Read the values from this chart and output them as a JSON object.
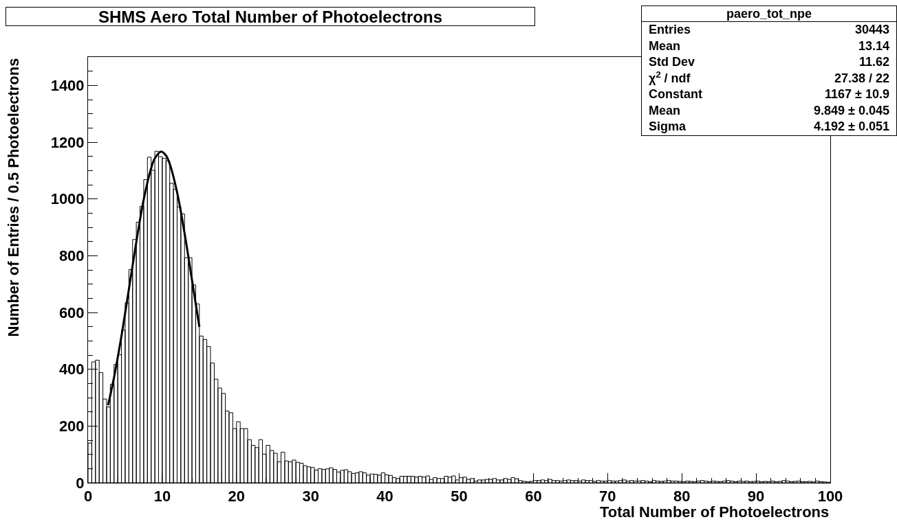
{
  "chart_data": {
    "type": "histogram",
    "title": "SHMS Aero Total Number of Photoelectrons",
    "xlabel": "Total Number of Photoelectrons",
    "ylabel": "Number of Entries / 0.5 Photoelectrons",
    "bins": [
      0,
      0.5,
      1,
      1.5,
      2,
      2.5,
      3,
      3.5,
      4,
      4.5,
      5,
      5.5,
      6,
      6.5,
      7,
      7.5,
      8,
      8.5,
      9,
      9.5,
      10,
      10.5,
      11,
      11.5,
      12,
      12.5,
      13,
      13.5,
      14,
      14.5,
      15,
      15.5,
      16,
      16.5,
      17,
      17.5,
      18,
      18.5,
      19,
      19.5,
      20,
      20.5,
      21,
      21.5,
      22,
      22.5,
      23,
      23.5,
      24,
      24.5,
      25,
      25.5,
      26,
      26.5,
      27,
      27.5,
      28,
      28.5,
      29,
      29.5,
      30,
      30.5,
      31,
      31.5,
      32,
      32.5,
      33,
      33.5,
      34,
      34.5,
      35,
      35.5,
      36,
      36.5,
      37,
      37.5,
      38,
      38.5,
      39,
      39.5,
      40,
      40.5,
      41,
      41.5,
      42,
      42.5,
      43,
      43.5,
      44,
      44.5,
      45,
      45.5,
      46,
      46.5,
      47,
      47.5,
      48,
      48.5,
      49,
      49.5,
      50,
      50.5,
      51,
      51.5,
      52,
      52.5,
      53,
      53.5,
      54,
      54.5,
      55,
      55.5,
      56,
      56.5,
      57,
      57.5,
      58,
      58.5,
      59,
      59.5,
      60,
      60.5,
      61,
      61.5,
      62,
      62.5,
      63,
      63.5,
      64,
      64.5,
      65,
      65.5,
      66,
      66.5,
      67,
      67.5,
      68,
      68.5,
      69,
      69.5,
      70,
      70.5,
      71,
      71.5,
      72,
      72.5,
      73,
      73.5,
      74,
      74.5,
      75,
      75.5,
      76,
      76.5,
      77,
      77.5,
      78,
      78.5,
      79,
      79.5,
      80,
      80.5,
      81,
      81.5,
      82,
      82.5,
      83,
      83.5,
      84,
      84.5,
      85,
      85.5,
      86,
      86.5,
      87,
      87.5,
      88,
      88.5,
      89,
      89.5,
      90,
      90.5,
      91,
      91.5,
      92,
      92.5,
      93,
      93.5,
      94,
      94.5,
      95,
      95.5,
      96,
      96.5,
      97,
      97.5,
      98,
      98.5,
      99,
      99.5,
      100
    ],
    "values": [
      140,
      426,
      432,
      388,
      295,
      267,
      347,
      417,
      451,
      538,
      634,
      751,
      857,
      918,
      974,
      1068,
      1147,
      1101,
      1168,
      1149,
      1143,
      1134,
      1055,
      1034,
      972,
      947,
      793,
      793,
      697,
      630,
      517,
      505,
      480,
      422,
      365,
      334,
      315,
      253,
      247,
      191,
      215,
      191,
      191,
      152,
      132,
      124,
      152,
      101,
      132,
      114,
      104,
      74,
      108,
      77,
      74,
      80,
      72,
      69,
      60,
      56,
      54,
      45,
      50,
      47,
      49,
      53,
      47,
      38,
      44,
      46,
      39,
      33,
      35,
      39,
      35,
      27,
      31,
      30,
      27,
      35,
      28,
      26,
      18,
      15,
      23,
      23,
      23,
      23,
      20,
      23,
      20,
      24,
      12,
      18,
      15,
      15,
      23,
      20,
      24,
      10,
      18,
      20,
      12,
      15,
      6,
      10,
      10,
      12,
      12,
      15,
      10,
      10,
      15,
      12,
      18,
      14,
      8,
      5,
      4,
      5,
      8,
      8,
      10,
      8,
      12,
      8,
      8,
      6,
      8,
      10,
      8,
      8,
      6,
      10,
      8,
      8,
      5,
      8,
      6,
      6,
      8,
      6,
      6,
      8,
      10,
      6,
      8,
      6,
      6,
      8,
      6,
      4,
      8,
      6,
      5,
      6,
      8,
      6,
      6,
      5,
      4,
      6,
      5,
      4,
      6,
      8,
      6,
      4,
      6,
      5,
      4,
      6,
      8,
      6,
      4,
      6,
      5,
      6,
      4,
      5,
      6,
      4,
      5,
      4,
      6,
      4,
      5,
      8,
      6,
      4,
      5,
      6,
      4,
      4,
      5,
      3,
      6,
      4,
      3,
      2
    ],
    "color": "#000000",
    "series": [
      {
        "type": "line",
        "color": "#000000",
        "x": [
          2.7,
          3.5,
          4.5,
          5.5,
          6.5,
          7.5,
          8.5,
          9,
          9.849,
          10.5,
          11,
          12,
          13,
          14,
          15
        ],
        "values": [
          273,
          371,
          517,
          682,
          848,
          998,
          1108,
          1143,
          1167,
          1153,
          1124,
          1023,
          880,
          715,
          549
        ]
      }
    ],
    "xlim": [
      0,
      100
    ],
    "xticks": [
      0,
      10,
      20,
      30,
      40,
      50,
      60,
      70,
      80,
      90,
      100
    ],
    "ylim": [
      0,
      1500
    ],
    "yticks": [
      0,
      200,
      400,
      600,
      800,
      1000,
      1200,
      1400
    ],
    "grid": false,
    "annotations": [
      "paero_tot_npe",
      "Entries",
      "30443",
      "Mean",
      "13.14",
      "Std Dev",
      "11.62",
      "χ$^{2}$ / ndf",
      "27.38 / 22",
      "Constant",
      "1167 ± 10.9",
      "Mean",
      "9.849 ± 0.045",
      "Sigma",
      "4.192 ± 0.051"
    ]
  }
}
